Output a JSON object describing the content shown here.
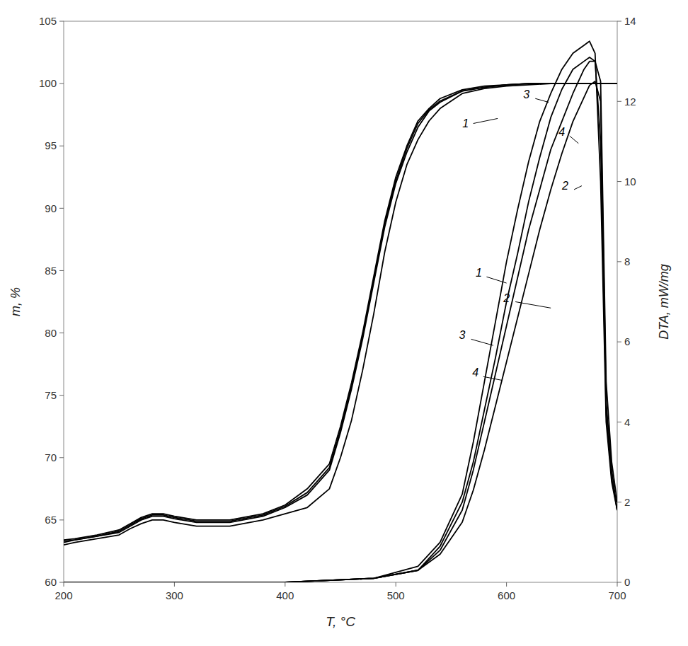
{
  "chart_data": {
    "type": "line",
    "xlabel": "T, °C",
    "ylabel": "m, %",
    "y2label": "DTA, mW/mg",
    "xlim": [
      200,
      700
    ],
    "xticks": [
      200,
      300,
      400,
      500,
      600,
      700
    ],
    "ylim": [
      60,
      105
    ],
    "yticks": [
      60,
      65,
      70,
      75,
      80,
      85,
      90,
      95,
      100,
      105
    ],
    "y2lim": [
      0,
      14
    ],
    "y2ticks": [
      0,
      2,
      4,
      6,
      8,
      10,
      12,
      14
    ],
    "grid": false,
    "series": [
      {
        "color": "#000000",
        "marker": "none",
        "x": [
          200,
          210,
          230,
          250,
          260,
          270,
          280,
          290,
          300,
          320,
          350,
          380,
          400,
          420,
          440,
          450,
          460,
          470,
          480,
          490,
          500,
          510,
          520,
          530,
          540,
          560,
          580,
          600,
          620,
          640,
          660,
          680,
          700
        ],
        "values": [
          63.0,
          63.2,
          63.5,
          63.8,
          64.3,
          64.7,
          65.0,
          65.0,
          64.8,
          64.5,
          64.5,
          65.0,
          65.5,
          66.0,
          67.5,
          70.0,
          73.0,
          77.0,
          81.5,
          86.5,
          90.5,
          93.5,
          95.5,
          97.0,
          98.0,
          99.2,
          99.6,
          99.8,
          99.9,
          100.0,
          100.0,
          100.0,
          100.0
        ]
      },
      {
        "color": "#000000",
        "marker": "none",
        "x": [
          200,
          210,
          230,
          250,
          260,
          270,
          280,
          290,
          300,
          320,
          350,
          380,
          400,
          420,
          440,
          450,
          460,
          470,
          480,
          490,
          500,
          510,
          520,
          530,
          540,
          560,
          580,
          600,
          620,
          640,
          660,
          680,
          700
        ],
        "values": [
          63.2,
          63.4,
          63.7,
          64.0,
          64.5,
          65.0,
          65.3,
          65.3,
          65.1,
          64.8,
          64.8,
          65.3,
          66.0,
          67.0,
          69.0,
          72.0,
          75.5,
          79.5,
          84.0,
          88.5,
          92.0,
          94.5,
          96.5,
          97.8,
          98.5,
          99.4,
          99.7,
          99.9,
          100.0,
          100.0,
          100.0,
          100.0,
          100.0
        ]
      },
      {
        "color": "#000000",
        "marker": "none",
        "x": [
          200,
          210,
          230,
          250,
          260,
          270,
          280,
          290,
          300,
          320,
          350,
          380,
          400,
          420,
          440,
          450,
          460,
          470,
          480,
          490,
          500,
          510,
          520,
          530,
          540,
          560,
          580,
          600,
          620,
          640,
          660,
          680,
          700
        ],
        "values": [
          63.4,
          63.5,
          63.8,
          64.2,
          64.7,
          65.2,
          65.5,
          65.5,
          65.3,
          65.0,
          65.0,
          65.5,
          66.2,
          67.5,
          69.5,
          72.5,
          76.0,
          80.0,
          84.5,
          89.0,
          92.5,
          95.0,
          97.0,
          98.0,
          98.8,
          99.5,
          99.8,
          99.9,
          100.0,
          100.0,
          100.0,
          100.0,
          100.0
        ]
      },
      {
        "color": "#000000",
        "marker": "none",
        "x": [
          200,
          210,
          230,
          250,
          260,
          270,
          280,
          290,
          300,
          320,
          350,
          380,
          400,
          420,
          440,
          450,
          460,
          470,
          480,
          490,
          500,
          510,
          520,
          530,
          540,
          560,
          580,
          600,
          620,
          640,
          660,
          680,
          700
        ],
        "values": [
          63.3,
          63.4,
          63.7,
          64.1,
          64.6,
          65.1,
          65.4,
          65.4,
          65.2,
          64.9,
          64.9,
          65.4,
          66.1,
          67.2,
          69.2,
          72.2,
          75.7,
          79.8,
          84.2,
          88.8,
          92.2,
          94.8,
          96.8,
          97.9,
          98.6,
          99.4,
          99.7,
          99.9,
          100.0,
          100.0,
          100.0,
          100.0,
          100.0
        ]
      },
      {
        "color": "#000000",
        "marker": "none",
        "axis": "y2",
        "x": [
          200,
          400,
          480,
          520,
          540,
          560,
          570,
          580,
          590,
          600,
          610,
          620,
          630,
          640,
          650,
          660,
          670,
          675,
          680,
          685,
          690,
          695,
          700
        ],
        "values": [
          0.0,
          0.0,
          0.1,
          0.3,
          0.8,
          1.8,
          2.8,
          4.0,
          5.2,
          6.4,
          7.6,
          8.8,
          9.8,
          10.8,
          11.5,
          12.2,
          12.8,
          13.0,
          13.0,
          12.5,
          5.0,
          3.0,
          2.0
        ]
      },
      {
        "color": "#000000",
        "marker": "none",
        "axis": "y2",
        "x": [
          200,
          400,
          480,
          520,
          540,
          560,
          570,
          580,
          590,
          600,
          610,
          620,
          630,
          640,
          650,
          660,
          670,
          675,
          680,
          685,
          690,
          695,
          700
        ],
        "values": [
          0.0,
          0.0,
          0.1,
          0.3,
          0.7,
          1.5,
          2.3,
          3.3,
          4.4,
          5.5,
          6.6,
          7.7,
          8.8,
          9.8,
          10.7,
          11.5,
          12.1,
          12.4,
          12.5,
          12.0,
          4.5,
          2.8,
          1.8
        ]
      },
      {
        "color": "#000000",
        "marker": "none",
        "axis": "y2",
        "x": [
          200,
          400,
          480,
          520,
          540,
          560,
          570,
          580,
          590,
          600,
          610,
          620,
          630,
          640,
          650,
          660,
          670,
          675,
          680,
          685,
          690,
          695,
          700
        ],
        "values": [
          0.0,
          0.0,
          0.1,
          0.4,
          1.0,
          2.2,
          3.5,
          5.0,
          6.5,
          8.0,
          9.3,
          10.5,
          11.5,
          12.2,
          12.8,
          13.2,
          13.4,
          13.5,
          13.2,
          10.0,
          4.0,
          2.5,
          1.8
        ]
      },
      {
        "color": "#000000",
        "marker": "none",
        "axis": "y2",
        "x": [
          200,
          400,
          480,
          520,
          540,
          560,
          570,
          580,
          590,
          600,
          610,
          620,
          630,
          640,
          650,
          660,
          670,
          675,
          680,
          685,
          690,
          695,
          700
        ],
        "values": [
          0.0,
          0.0,
          0.1,
          0.3,
          0.9,
          2.0,
          3.0,
          4.3,
          5.6,
          7.0,
          8.2,
          9.5,
          10.6,
          11.6,
          12.3,
          12.8,
          13.0,
          13.1,
          13.0,
          11.0,
          4.2,
          2.6,
          1.8
        ]
      }
    ],
    "annotations": [
      {
        "text": "1",
        "x": 575,
        "y": 84.5,
        "line_from": [
          582,
          84.5
        ],
        "line_to": [
          600,
          84.0
        ]
      },
      {
        "text": "2",
        "x": 600,
        "y": 82.5,
        "line_from": [
          608,
          82.5
        ],
        "line_to": [
          640,
          82.0
        ]
      },
      {
        "text": "3",
        "x": 560,
        "y": 79.5,
        "line_from": [
          568,
          79.5
        ],
        "line_to": [
          588,
          79.0
        ]
      },
      {
        "text": "4",
        "x": 572,
        "y": 76.5,
        "line_from": [
          579,
          76.5
        ],
        "line_to": [
          596,
          76.2
        ]
      },
      {
        "text": "1",
        "x": 563,
        "y": 96.5,
        "line_from": [
          570,
          96.8
        ],
        "line_to": [
          592,
          97.2
        ]
      },
      {
        "text": "3",
        "x": 618,
        "y": 98.8,
        "line_from": [
          626,
          98.8
        ],
        "line_to": [
          638,
          98.5
        ]
      },
      {
        "text": "4",
        "x": 650,
        "y": 95.8,
        "line_from": [
          657,
          95.8
        ],
        "line_to": [
          665,
          95.2
        ]
      },
      {
        "text": "2",
        "x": 653,
        "y": 91.5,
        "line_from": [
          661,
          91.5
        ],
        "line_to": [
          668,
          91.8
        ]
      }
    ]
  }
}
